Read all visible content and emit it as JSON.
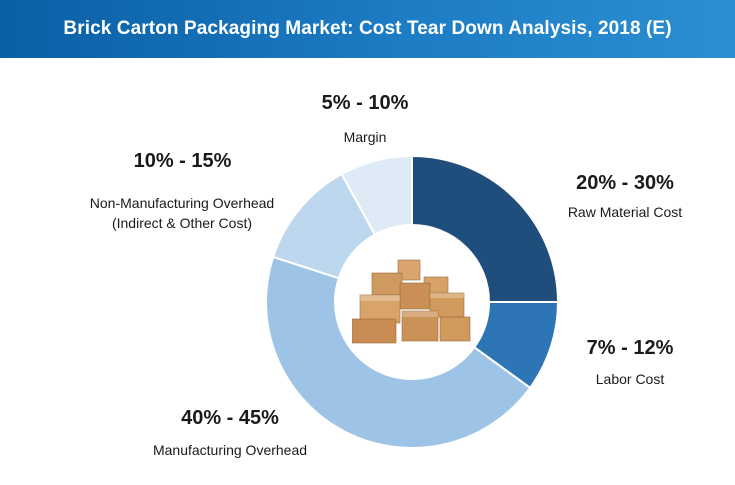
{
  "header": {
    "title": "Brick Carton Packaging Market: Cost Tear Down Analysis, 2018 (E)"
  },
  "colors": {
    "header_bg": "#0b5fa5",
    "raw_material": "#1f4e7c",
    "labor": "#2e75b6",
    "manufacturing_overhead": "#9dc3e6",
    "non_manufacturing_overhead": "#bdd7ee",
    "margin": "#deebf7"
  },
  "center_icon": "carton-boxes-icon",
  "chart_data": {
    "type": "pie",
    "donut": true,
    "title": "Brick Carton Packaging Market: Cost Tear Down Analysis, 2018 (E)",
    "slices": [
      {
        "name": "Raw Material Cost",
        "range_label": "20% - 30%",
        "value": 25,
        "color": "#1f4e7c"
      },
      {
        "name": "Labor Cost",
        "range_label": "7% - 12%",
        "value": 10,
        "color": "#2e75b6"
      },
      {
        "name": "Manufacturing Overhead",
        "range_label": "40% - 45%",
        "value": 45,
        "color": "#9dc3e6"
      },
      {
        "name": "Non-Manufacturing Overhead",
        "name_line2": "(Indirect & Other Cost)",
        "range_label": "10% - 15%",
        "value": 12,
        "color": "#bdd7ee"
      },
      {
        "name": "Margin",
        "range_label": "5% - 10%",
        "value": 8,
        "color": "#deebf7"
      }
    ]
  }
}
